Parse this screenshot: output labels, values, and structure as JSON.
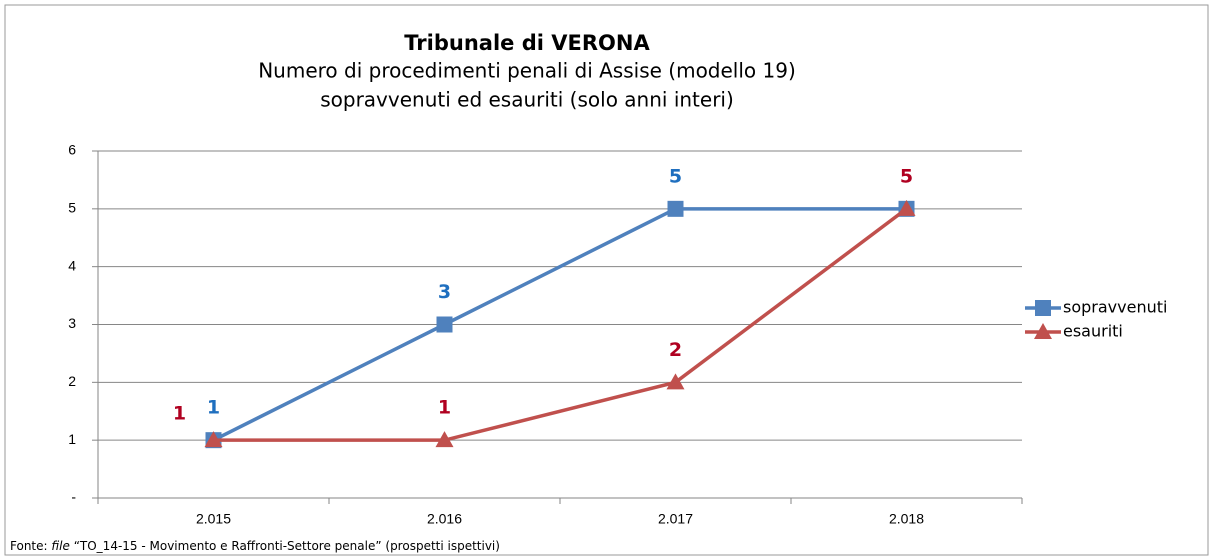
{
  "chart_data": {
    "type": "line",
    "title": "Tribunale di VERONA",
    "subtitle": [
      "Numero di procedimenti penali di Assise (modello 19)",
      "sopravvenuti ed esauriti (solo anni interi)"
    ],
    "categories": [
      "2.015",
      "2.016",
      "2.017",
      "2.018"
    ],
    "series": [
      {
        "name": "sopravvenuti",
        "color": "#4f81bd",
        "label_color": "#1f6fbf",
        "marker": "square",
        "values": [
          1,
          3,
          5,
          5
        ],
        "value_labels": [
          "1",
          "3",
          "5",
          null
        ]
      },
      {
        "name": "esauriti",
        "color": "#c0504d",
        "label_color": "#b00020",
        "marker": "triangle",
        "values": [
          1,
          1,
          2,
          5
        ],
        "value_labels": [
          "1",
          "1",
          "2",
          "5"
        ]
      }
    ],
    "ylim": [
      0,
      6
    ],
    "yticks": [
      {
        "value": 0,
        "label": "-"
      },
      1,
      2,
      3,
      4,
      5,
      6
    ],
    "grid": true,
    "legend": "right",
    "source": {
      "prefix": "Fonte:",
      "emphasis": "file",
      "text": "“TO_14-15 - Movimento e Raffronti-Settore penale” (prospetti ispettivi)"
    }
  }
}
